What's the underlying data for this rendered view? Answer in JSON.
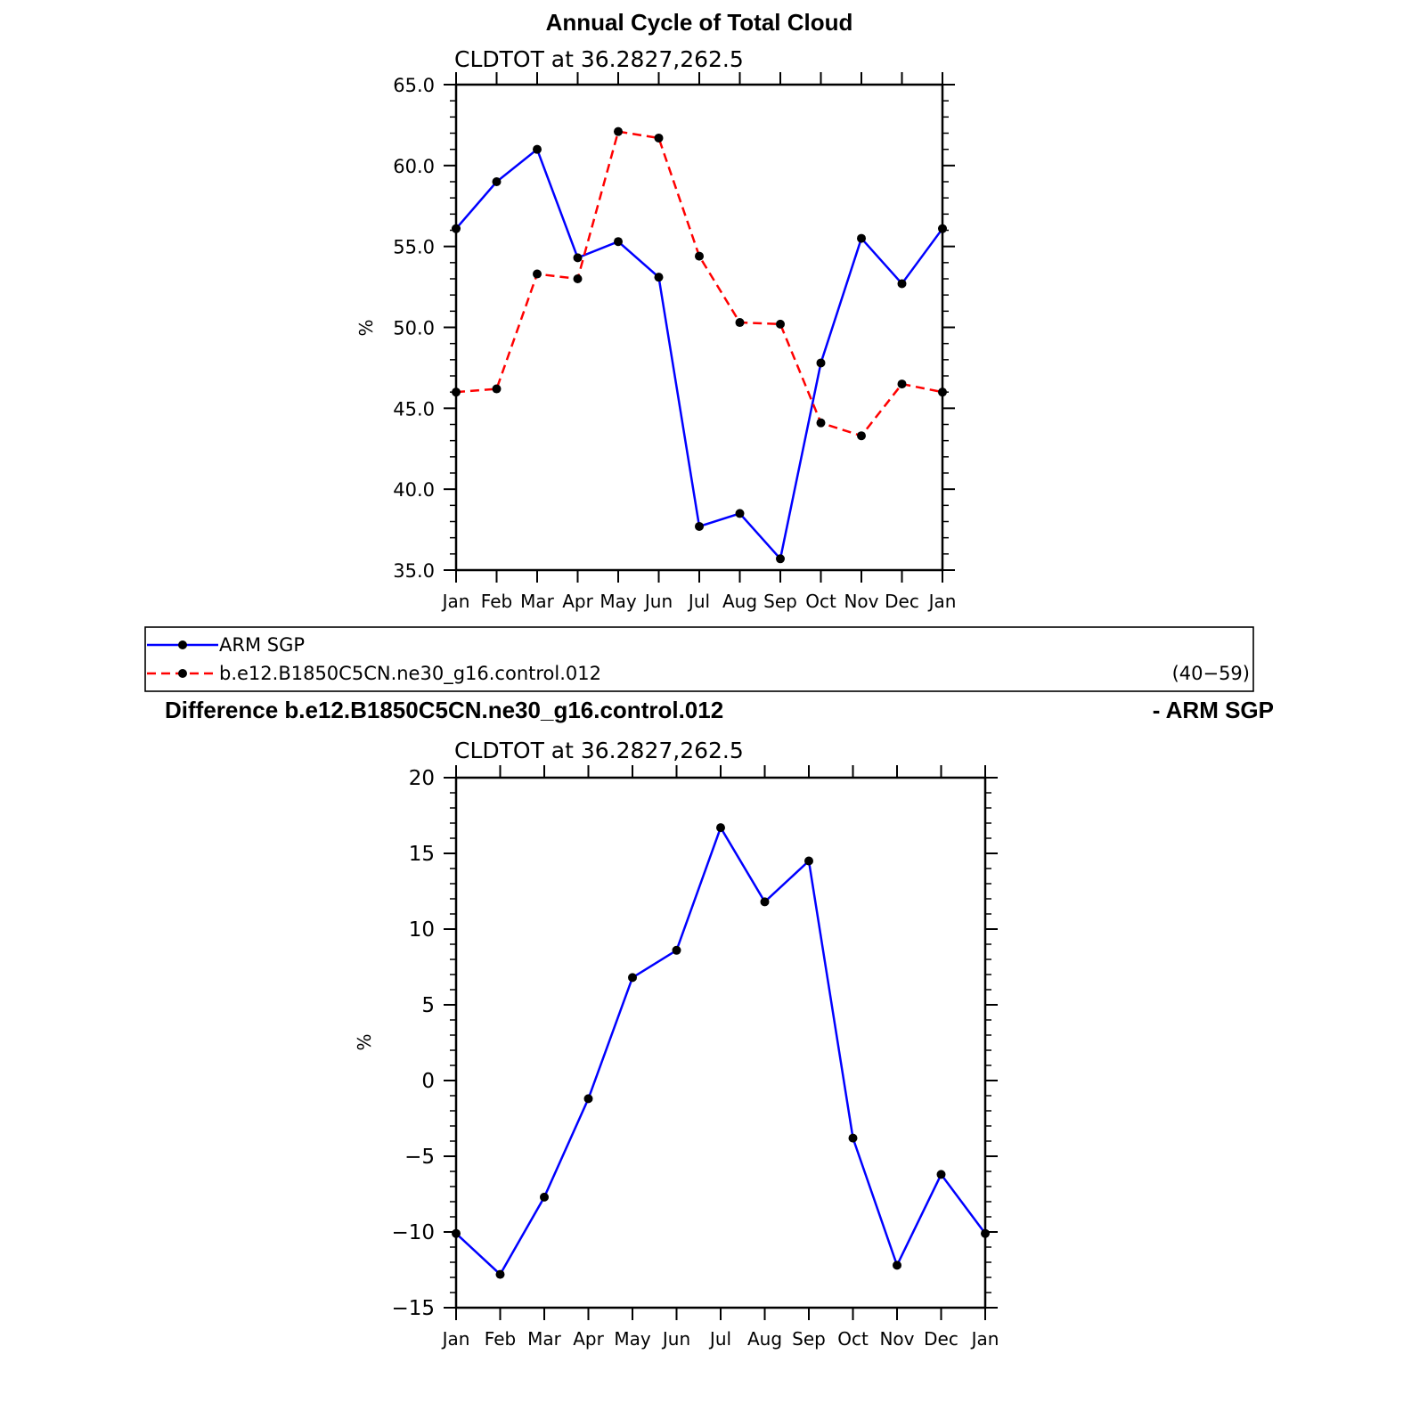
{
  "figure_title": "Annual Cycle of Total Cloud",
  "panels": {
    "top": {
      "subtitle": "CLDTOT at 36.2827,262.5",
      "ylabel": "%"
    },
    "legend": {
      "entries": [
        {
          "label": "ARM SGP",
          "color": "#0000ff",
          "dash": "solid"
        },
        {
          "label": "b.e12.B1850C5CN.ne30_g16.control.012",
          "color": "#ff0000",
          "dash": "dashed"
        }
      ],
      "note": "(40−59)"
    },
    "bottom": {
      "title_left": "Difference b.e12.B1850C5CN.ne30_g16.control.012",
      "title_right": "- ARM SGP",
      "subtitle": "CLDTOT at 36.2827,262.5",
      "ylabel": "%"
    }
  },
  "chart_data": [
    {
      "type": "line",
      "title": "Annual Cycle of Total Cloud",
      "subtitle": "CLDTOT at 36.2827,262.5",
      "xlabel": "",
      "ylabel": "%",
      "categories": [
        "Jan",
        "Feb",
        "Mar",
        "Apr",
        "May",
        "Jun",
        "Jul",
        "Aug",
        "Sep",
        "Oct",
        "Nov",
        "Dec",
        "Jan"
      ],
      "ylim": [
        35,
        65
      ],
      "yticks": [
        35,
        40,
        45,
        50,
        55,
        60,
        65
      ],
      "ytick_labels": [
        "35.0",
        "40.0",
        "45.0",
        "50.0",
        "55.0",
        "60.0",
        "65.0"
      ],
      "series": [
        {
          "name": "ARM SGP",
          "color": "#0000ff",
          "dash": "solid",
          "values": [
            56.1,
            59.0,
            61.0,
            54.3,
            55.3,
            53.1,
            37.7,
            38.5,
            35.7,
            47.8,
            55.5,
            52.7,
            56.1
          ]
        },
        {
          "name": "b.e12.B1850C5CN.ne30_g16.control.012",
          "color": "#ff0000",
          "dash": "dashed",
          "values": [
            46.0,
            46.2,
            53.3,
            53.0,
            62.1,
            61.7,
            54.4,
            50.3,
            50.2,
            44.1,
            43.3,
            46.5,
            46.0
          ]
        }
      ],
      "grid": false
    },
    {
      "type": "line",
      "title": "Difference b.e12.B1850C5CN.ne30_g16.control.012 - ARM SGP",
      "subtitle": "CLDTOT at 36.2827,262.5",
      "xlabel": "",
      "ylabel": "%",
      "categories": [
        "Jan",
        "Feb",
        "Mar",
        "Apr",
        "May",
        "Jun",
        "Jul",
        "Aug",
        "Sep",
        "Oct",
        "Nov",
        "Dec",
        "Jan"
      ],
      "ylim": [
        -15,
        20
      ],
      "yticks": [
        -15,
        -10,
        -5,
        0,
        5,
        10,
        15,
        20
      ],
      "ytick_labels": [
        "−15",
        "−10",
        "−5",
        "0",
        "5",
        "10",
        "15",
        "20"
      ],
      "series": [
        {
          "color": "#0000ff",
          "dash": "solid",
          "values": [
            -10.1,
            -12.8,
            -7.7,
            -1.2,
            6.8,
            8.6,
            16.7,
            11.8,
            14.5,
            -3.8,
            -12.2,
            -6.2,
            -10.1
          ]
        }
      ],
      "grid": false
    }
  ]
}
